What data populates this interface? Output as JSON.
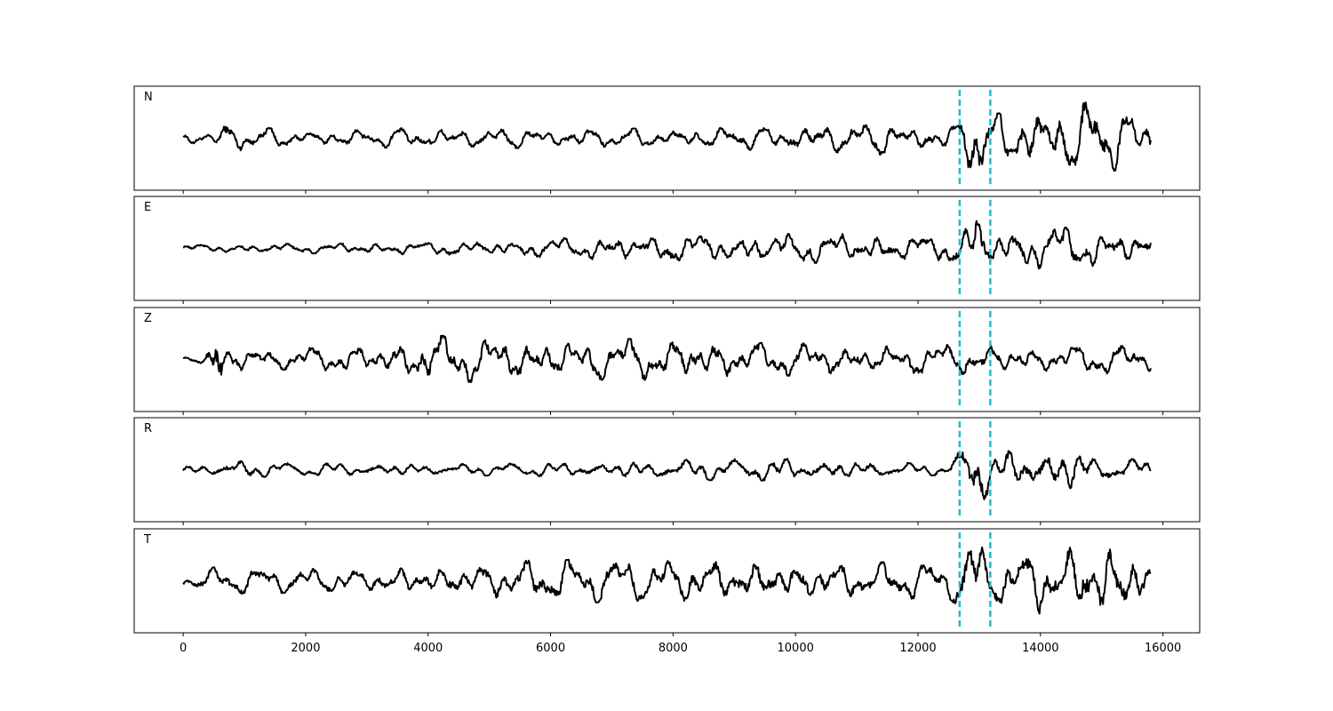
{
  "chart_data": {
    "type": "line",
    "x_range": [
      0,
      15800
    ],
    "xlim": [
      -800,
      16600
    ],
    "x_ticks": [
      0,
      2000,
      4000,
      6000,
      8000,
      10000,
      12000,
      14000,
      16000
    ],
    "x_tick_labels": [
      "0",
      "2000",
      "4000",
      "6000",
      "8000",
      "10000",
      "12000",
      "14000",
      "16000"
    ],
    "markers": [
      12680,
      13180
    ],
    "colors": {
      "trace": "#000000",
      "marker": "#17becf"
    },
    "grid": false,
    "series": [
      {
        "name": "N",
        "envelope": [
          [
            0,
            0.12
          ],
          [
            500,
            0.14
          ],
          [
            700,
            0.35
          ],
          [
            1000,
            0.25
          ],
          [
            2000,
            0.15
          ],
          [
            4000,
            0.22
          ],
          [
            6000,
            0.2
          ],
          [
            8000,
            0.2
          ],
          [
            9500,
            0.25
          ],
          [
            11500,
            0.35
          ],
          [
            12600,
            0.25
          ],
          [
            12800,
            0.75
          ],
          [
            13000,
            0.95
          ],
          [
            13200,
            0.5
          ],
          [
            13600,
            0.55
          ],
          [
            14000,
            0.7
          ],
          [
            15000,
            0.75
          ],
          [
            15800,
            0.45
          ]
        ]
      },
      {
        "name": "E",
        "envelope": [
          [
            0,
            0.08
          ],
          [
            2000,
            0.1
          ],
          [
            5000,
            0.15
          ],
          [
            7000,
            0.25
          ],
          [
            9000,
            0.3
          ],
          [
            11000,
            0.3
          ],
          [
            12400,
            0.25
          ],
          [
            12800,
            0.5
          ],
          [
            12950,
            0.9
          ],
          [
            13200,
            0.35
          ],
          [
            14000,
            0.45
          ],
          [
            15000,
            0.4
          ],
          [
            15800,
            0.3
          ]
        ]
      },
      {
        "name": "Z",
        "envelope": [
          [
            0,
            0.05
          ],
          [
            350,
            0.1
          ],
          [
            500,
            0.75
          ],
          [
            580,
            0.95
          ],
          [
            700,
            0.3
          ],
          [
            1500,
            0.2
          ],
          [
            3500,
            0.35
          ],
          [
            4000,
            0.5
          ],
          [
            6000,
            0.4
          ],
          [
            8500,
            0.45
          ],
          [
            9000,
            0.35
          ],
          [
            12000,
            0.3
          ],
          [
            13200,
            0.3
          ],
          [
            14000,
            0.25
          ],
          [
            15000,
            0.3
          ],
          [
            15800,
            0.25
          ]
        ]
      },
      {
        "name": "R",
        "envelope": [
          [
            0,
            0.08
          ],
          [
            800,
            0.2
          ],
          [
            1200,
            0.15
          ],
          [
            5000,
            0.12
          ],
          [
            8000,
            0.2
          ],
          [
            10000,
            0.25
          ],
          [
            12500,
            0.1
          ],
          [
            12800,
            0.6
          ],
          [
            12930,
            0.95
          ],
          [
            13200,
            0.35
          ],
          [
            14000,
            0.5
          ],
          [
            14500,
            0.45
          ],
          [
            15000,
            0.25
          ],
          [
            15800,
            0.2
          ]
        ]
      },
      {
        "name": "T",
        "envelope": [
          [
            0,
            0.1
          ],
          [
            700,
            0.35
          ],
          [
            1000,
            0.25
          ],
          [
            3000,
            0.25
          ],
          [
            5000,
            0.4
          ],
          [
            7000,
            0.45
          ],
          [
            9000,
            0.45
          ],
          [
            11000,
            0.4
          ],
          [
            12500,
            0.35
          ],
          [
            12850,
            0.8
          ],
          [
            12950,
            0.95
          ],
          [
            13200,
            0.45
          ],
          [
            14000,
            0.7
          ],
          [
            15000,
            0.9
          ],
          [
            15800,
            0.5
          ]
        ]
      }
    ]
  }
}
